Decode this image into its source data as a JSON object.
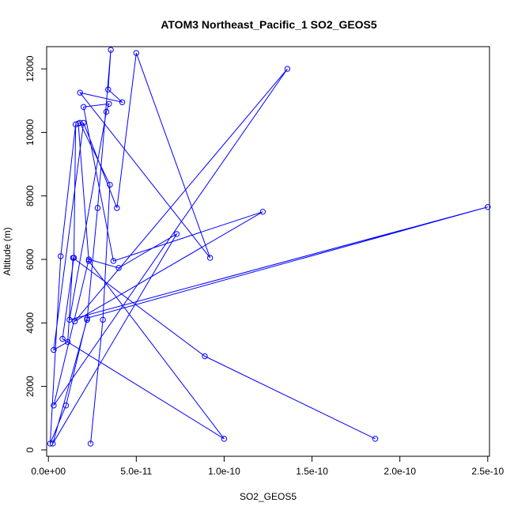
{
  "chart_data": {
    "type": "line",
    "title": "ATOM3 Northeast_Pacific_1 SO2_GEOS5",
    "xlabel": "SO2_GEOS5",
    "ylabel": "Altitude (m)",
    "xlim": [
      -1e-12,
      2.51e-10
    ],
    "ylim": [
      -200,
      12700
    ],
    "x_ticks": [
      0,
      5e-11,
      1e-10,
      1.5e-10,
      2e-10,
      2.5e-10
    ],
    "x_tick_labels": [
      "0.0e+00",
      "5.0e-11",
      "1.0e-10",
      "1.5e-10",
      "2.0e-10",
      "2.5e-10"
    ],
    "y_ticks": [
      0,
      2000,
      4000,
      6000,
      8000,
      10000,
      12000
    ],
    "y_tick_labels": [
      "0",
      "2000",
      "4000",
      "6000",
      "8000",
      "10000",
      "12000"
    ],
    "grid": false,
    "colors": {
      "series": "#0000ff"
    },
    "series": [
      {
        "points": [
          [
            2.4e-11,
            200
          ],
          [
            3.1e-11,
            4100
          ],
          [
            3.5e-11,
            8350
          ],
          [
            1.8e-11,
            10300
          ],
          [
            1.7e-11,
            10280
          ],
          [
            2.3e-11,
            5950
          ],
          [
            1e-10,
            350
          ],
          [
            8e-12,
            3500
          ],
          [
            1.45e-11,
            6050
          ],
          [
            1.55e-11,
            10250
          ],
          [
            7e-12,
            6100
          ],
          [
            1e-12,
            200
          ],
          [
            1e-11,
            1400
          ],
          [
            2.2e-11,
            4150
          ],
          [
            2.5e-10,
            7650
          ],
          [
            1.2e-11,
            4100
          ],
          [
            3.3e-11,
            10650
          ],
          [
            3.45e-11,
            10900
          ],
          [
            2e-11,
            10800
          ],
          [
            3.7e-11,
            5950
          ],
          [
            1.22e-10,
            7500
          ],
          [
            1.5e-11,
            4050
          ],
          [
            1.36e-10,
            12000
          ],
          [
            3e-12,
            1400
          ],
          [
            2.3e-11,
            6000
          ],
          [
            4e-11,
            5730
          ],
          [
            7.3e-11,
            6800
          ],
          [
            2.5e-12,
            200
          ],
          [
            2.2e-11,
            4100
          ],
          [
            2.8e-11,
            7620
          ],
          [
            3.55e-11,
            12600
          ],
          [
            3.4e-11,
            11350
          ],
          [
            4.2e-11,
            10950
          ],
          [
            1.8e-11,
            11250
          ],
          [
            9.2e-11,
            6050
          ],
          [
            5e-11,
            12500
          ],
          [
            3.9e-11,
            7620
          ],
          [
            2e-11,
            10300
          ],
          [
            3e-12,
            3150
          ],
          [
            1.1e-11,
            3400
          ],
          [
            1.4e-11,
            6050
          ],
          [
            8.9e-11,
            2950
          ],
          [
            1.86e-10,
            350
          ]
        ]
      }
    ]
  }
}
